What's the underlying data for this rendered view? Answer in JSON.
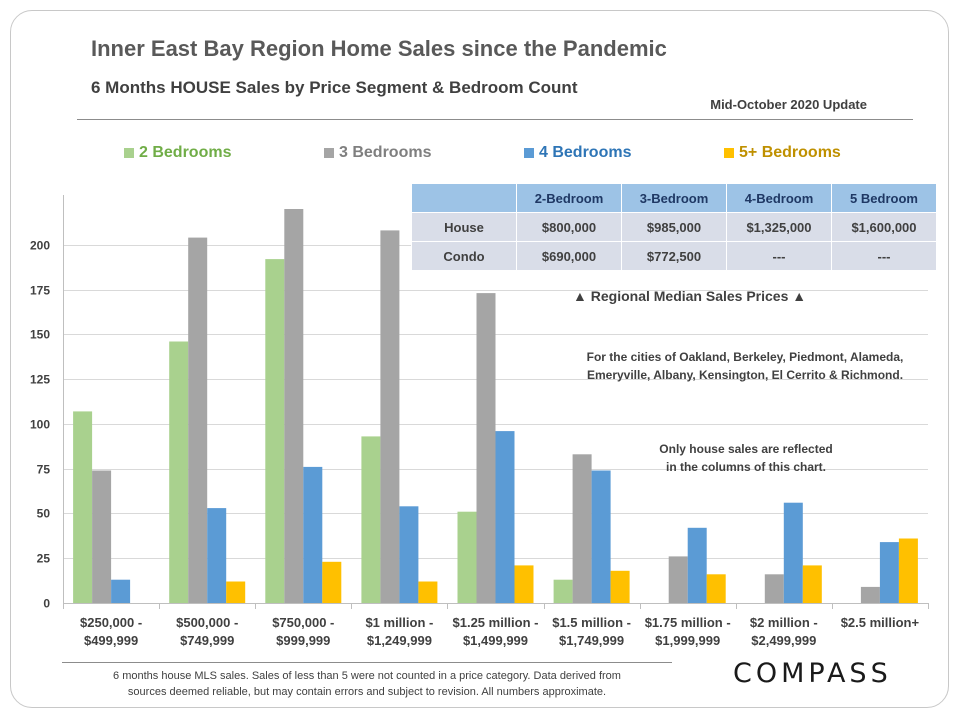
{
  "header": {
    "title": "Inner East Bay Region Home Sales since the Pandemic",
    "subtitle": "6 Months HOUSE Sales by Price Segment & Bedroom Count",
    "update": "Mid-October 2020 Update"
  },
  "chart_data": {
    "type": "bar",
    "title": "Inner East Bay Region Home Sales since the Pandemic",
    "subtitle": "6 Months HOUSE Sales by Price Segment & Bedroom Count",
    "xlabel": "",
    "ylabel": "",
    "ylim": [
      0,
      225
    ],
    "yticks": [
      0,
      25,
      50,
      75,
      100,
      125,
      150,
      175,
      200
    ],
    "grid": true,
    "legend_position": "top",
    "categories": [
      [
        "$250,000 -",
        "$499,999"
      ],
      [
        "$500,000 -",
        "$749,999"
      ],
      [
        "$750,000 -",
        "$999,999"
      ],
      [
        "$1 million -",
        "$1,249,999"
      ],
      [
        "$1.25 million -",
        "$1,499,999"
      ],
      [
        "$1.5 million -",
        "$1,749,999"
      ],
      [
        "$1.75 million -",
        "$1,999,999"
      ],
      [
        "$2 million -",
        "$2,499,999"
      ],
      [
        "$2.5 million+"
      ]
    ],
    "series": [
      {
        "name": "2 Bedrooms",
        "color": "#a9d18e",
        "values": [
          107,
          146,
          192,
          93,
          51,
          13,
          null,
          null,
          null
        ]
      },
      {
        "name": "3 Bedrooms",
        "color": "#a5a5a5",
        "values": [
          74,
          204,
          220,
          208,
          173,
          83,
          26,
          16,
          9
        ]
      },
      {
        "name": "4 Bedrooms",
        "color": "#5b9bd5",
        "values": [
          13,
          53,
          76,
          54,
          96,
          74,
          42,
          56,
          34
        ]
      },
      {
        "name": "5+ Bedrooms",
        "color": "#ffc000",
        "values": [
          null,
          12,
          23,
          12,
          21,
          18,
          16,
          21,
          36
        ]
      }
    ]
  },
  "legend_colors": {
    "s0": "#70ad47",
    "s1": "#7f7f7f",
    "s2": "#2e75b6",
    "s3": "#bf9000"
  },
  "price_table": {
    "headers": [
      "",
      "2-Bedroom",
      "3-Bedroom",
      "4-Bedroom",
      "5 Bedroom"
    ],
    "rows": [
      [
        "House",
        "$800,000",
        "$985,000",
        "$1,325,000",
        "$1,600,000"
      ],
      [
        "Condo",
        "$690,000",
        "$772,500",
        "---",
        "---"
      ]
    ],
    "caption": "▲  Regional Median Sales Prices  ▲"
  },
  "notes": {
    "cities_line1": "For the cities of Oakland, Berkeley, Piedmont, Alameda,",
    "cities_line2": "Emeryville, Albany, Kensington, El Cerrito & Richmond.",
    "house_line1": "Only house sales are reflected",
    "house_line2": "in the columns of this chart."
  },
  "footer": {
    "line1": "6 months house MLS sales.  Sales of less than 5 were not counted in a price category. Data derived from",
    "line2": "sources deemed reliable, but may contain errors and subject to revision. All numbers approximate."
  },
  "logo": "COMPASS"
}
